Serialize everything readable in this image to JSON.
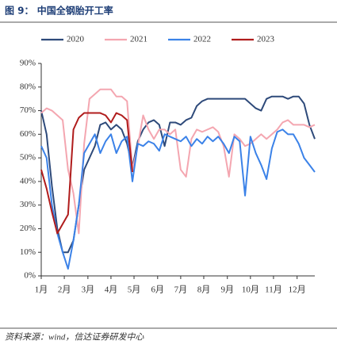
{
  "chart_data": {
    "type": "line",
    "title": "图 9： 中国全钢胎开工率",
    "source": "资料来源：wind，信达证券研发中心",
    "x": [
      0,
      1,
      2,
      3,
      4,
      5,
      6,
      7,
      8,
      9,
      10,
      11,
      12,
      13,
      14,
      15,
      16,
      17,
      18,
      19,
      20,
      21,
      22,
      23,
      24,
      25,
      26,
      27,
      28,
      29,
      30,
      31,
      32,
      33,
      34,
      35,
      36,
      37,
      38,
      39,
      40,
      41,
      42,
      43,
      44,
      45,
      46,
      47,
      48,
      49,
      50,
      51
    ],
    "xlim": [
      0,
      51
    ],
    "xticks": [
      {
        "value": 0,
        "label": "1月"
      },
      {
        "value": 4.3,
        "label": "2月"
      },
      {
        "value": 8.7,
        "label": "3月"
      },
      {
        "value": 13,
        "label": "4月"
      },
      {
        "value": 17.3,
        "label": "5月"
      },
      {
        "value": 21.7,
        "label": "6月"
      },
      {
        "value": 26,
        "label": "7月"
      },
      {
        "value": 30.3,
        "label": "8月"
      },
      {
        "value": 34.7,
        "label": "9月"
      },
      {
        "value": 39,
        "label": "10月"
      },
      {
        "value": 43.3,
        "label": "11月"
      },
      {
        "value": 47.7,
        "label": "12月"
      }
    ],
    "ylim": [
      0,
      90
    ],
    "yticks": [
      {
        "value": 0,
        "label": "0%"
      },
      {
        "value": 10,
        "label": "10%"
      },
      {
        "value": 20,
        "label": "20%"
      },
      {
        "value": 30,
        "label": "30%"
      },
      {
        "value": 40,
        "label": "40%"
      },
      {
        "value": 50,
        "label": "50%"
      },
      {
        "value": 60,
        "label": "60%"
      },
      {
        "value": 70,
        "label": "70%"
      },
      {
        "value": 80,
        "label": "80%"
      },
      {
        "value": 90,
        "label": "90%"
      }
    ],
    "series": [
      {
        "name": "2020",
        "color": "#2e4a7a",
        "values": [
          70,
          60,
          38,
          20,
          10,
          10,
          15,
          30,
          45,
          50,
          55,
          64,
          65,
          62,
          64,
          62,
          56,
          46,
          57,
          62,
          65,
          66,
          64,
          55,
          65,
          65,
          64,
          66,
          67,
          72,
          74,
          75,
          75,
          75,
          75,
          75,
          75,
          75,
          75,
          73,
          71,
          70,
          75,
          76,
          76,
          76,
          75,
          76,
          76,
          73,
          64,
          58
        ]
      },
      {
        "name": "2021",
        "color": "#f4a6b0",
        "values": [
          69,
          71,
          70,
          68,
          66,
          45,
          35,
          18,
          56,
          75,
          77,
          79,
          79,
          79,
          76,
          76,
          74,
          45,
          55,
          68,
          62,
          58,
          62,
          62,
          60,
          62,
          45,
          42,
          58,
          62,
          61,
          62,
          63,
          61,
          55,
          42,
          60,
          58,
          55,
          56,
          58,
          60,
          58,
          60,
          62,
          65,
          66,
          64,
          64,
          64,
          63,
          64
        ]
      },
      {
        "name": "2022",
        "color": "#3b82e8",
        "values": [
          55,
          50,
          30,
          18,
          10,
          3,
          15,
          30,
          52,
          56,
          60,
          52,
          57,
          60,
          52,
          57,
          59,
          40,
          56,
          55,
          57,
          56,
          53,
          60,
          59,
          58,
          57,
          59,
          55,
          58,
          56,
          59,
          57,
          59,
          56,
          52,
          59,
          57,
          34,
          59,
          52,
          47,
          41,
          54,
          61,
          62,
          60,
          60,
          56,
          50,
          47,
          44
        ]
      },
      {
        "name": "2023",
        "color": "#b01c1c",
        "values": [
          45,
          37,
          27,
          18,
          22,
          26,
          62,
          67,
          69,
          69,
          69,
          69,
          68,
          65,
          69,
          68,
          66,
          44,
          null,
          null,
          null,
          null,
          null,
          null,
          null,
          null,
          null,
          null,
          null,
          null,
          null,
          null,
          null,
          null,
          null,
          null,
          null,
          null,
          null,
          null,
          null,
          null,
          null,
          null,
          null,
          null,
          null,
          null,
          null,
          null,
          null,
          null
        ]
      }
    ]
  }
}
